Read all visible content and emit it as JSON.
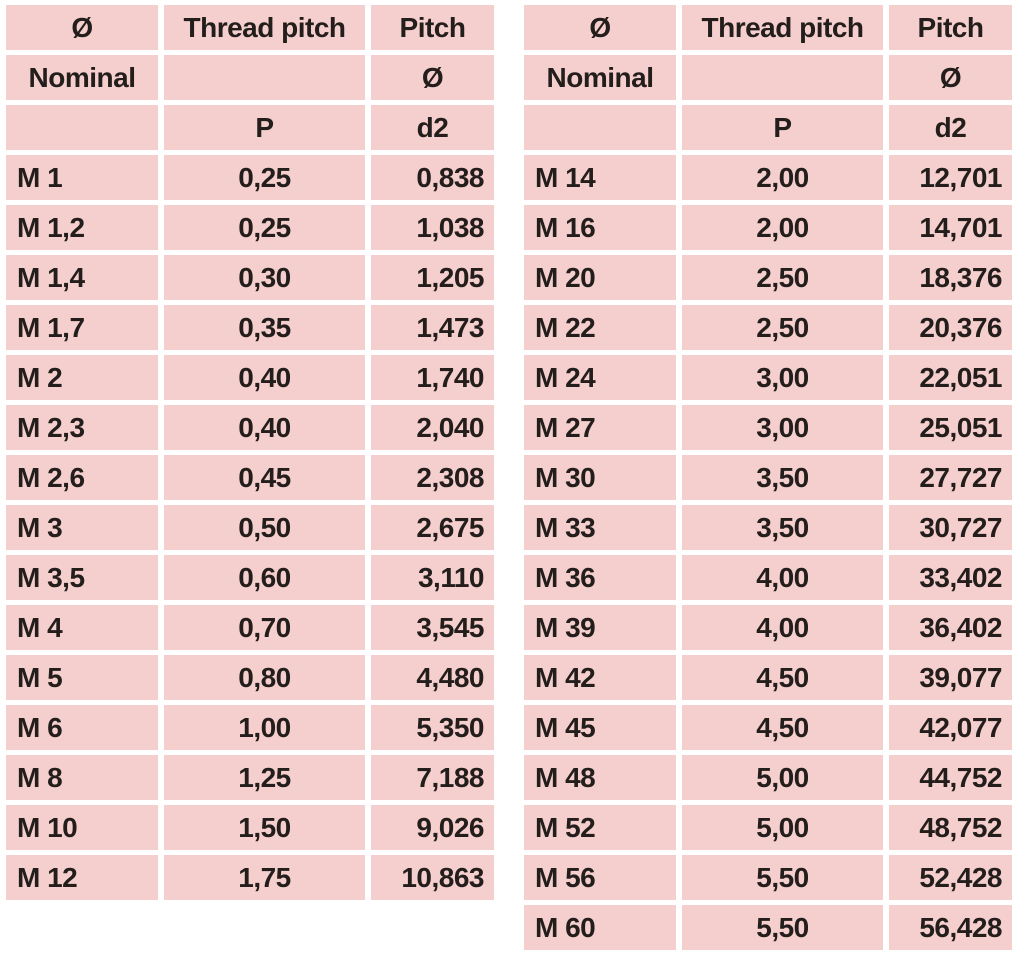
{
  "colors": {
    "cell_background": "#f4cfcd",
    "grid_gap": "#ffffff",
    "text": "#231d1b"
  },
  "tables": [
    {
      "name": "metric-thread-table-left",
      "header": [
        [
          "Ø",
          "Thread pitch",
          "Pitch"
        ],
        [
          "Nominal",
          "",
          "Ø"
        ],
        [
          "",
          "P",
          "d2"
        ]
      ],
      "rows": [
        [
          "M 1",
          "0,25",
          "0,838"
        ],
        [
          "M 1,2",
          "0,25",
          "1,038"
        ],
        [
          "M 1,4",
          "0,30",
          "1,205"
        ],
        [
          "M 1,7",
          "0,35",
          "1,473"
        ],
        [
          "M 2",
          "0,40",
          "1,740"
        ],
        [
          "M 2,3",
          "0,40",
          "2,040"
        ],
        [
          "M 2,6",
          "0,45",
          "2,308"
        ],
        [
          "M 3",
          "0,50",
          "2,675"
        ],
        [
          "M 3,5",
          "0,60",
          "3,110"
        ],
        [
          "M 4",
          "0,70",
          "3,545"
        ],
        [
          "M 5",
          "0,80",
          "4,480"
        ],
        [
          "M 6",
          "1,00",
          "5,350"
        ],
        [
          "M 8",
          "1,25",
          "7,188"
        ],
        [
          "M 10",
          "1,50",
          "9,026"
        ],
        [
          "M 12",
          "1,75",
          "10,863"
        ]
      ]
    },
    {
      "name": "metric-thread-table-right",
      "header": [
        [
          "Ø",
          "Thread pitch",
          "Pitch"
        ],
        [
          "Nominal",
          "",
          "Ø"
        ],
        [
          "",
          "P",
          "d2"
        ]
      ],
      "rows": [
        [
          "M 14",
          "2,00",
          "12,701"
        ],
        [
          "M 16",
          "2,00",
          "14,701"
        ],
        [
          "M 20",
          "2,50",
          "18,376"
        ],
        [
          "M 22",
          "2,50",
          "20,376"
        ],
        [
          "M 24",
          "3,00",
          "22,051"
        ],
        [
          "M 27",
          "3,00",
          "25,051"
        ],
        [
          "M 30",
          "3,50",
          "27,727"
        ],
        [
          "M 33",
          "3,50",
          "30,727"
        ],
        [
          "M 36",
          "4,00",
          "33,402"
        ],
        [
          "M 39",
          "4,00",
          "36,402"
        ],
        [
          "M 42",
          "4,50",
          "39,077"
        ],
        [
          "M 45",
          "4,50",
          "42,077"
        ],
        [
          "M 48",
          "5,00",
          "44,752"
        ],
        [
          "M 52",
          "5,00",
          "48,752"
        ],
        [
          "M 56",
          "5,50",
          "52,428"
        ],
        [
          "M 60",
          "5,50",
          "56,428"
        ]
      ]
    }
  ]
}
